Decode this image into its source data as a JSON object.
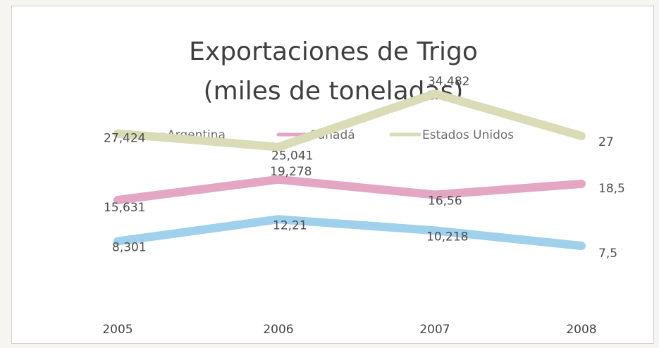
{
  "chart_data": {
    "type": "line",
    "title_lines": [
      "Exportaciones de Trigo",
      "(miles de toneladas)"
    ],
    "categories": [
      "2005",
      "2006",
      "2007",
      "2008"
    ],
    "ylim": [
      0,
      45
    ],
    "grid": false,
    "legend_position": "top",
    "series": [
      {
        "name": "Argentina",
        "color": "#9fd0ec",
        "values": [
          8.301,
          12.21,
          10.218,
          7.5
        ],
        "labels": [
          "8,301",
          "12,21",
          "10,218",
          "7,5"
        ]
      },
      {
        "name": "Canadá",
        "color": "#e3a6c3",
        "values": [
          15.631,
          19.278,
          16.56,
          18.5
        ],
        "labels": [
          "15,631",
          "19,278",
          "16,56",
          "18,5"
        ]
      },
      {
        "name": "Estados Unidos",
        "color": "#d9dcb6",
        "values": [
          27.424,
          25.041,
          34.482,
          27
        ],
        "labels": [
          "27,424",
          "25,041",
          "34,482",
          "27"
        ]
      }
    ]
  }
}
